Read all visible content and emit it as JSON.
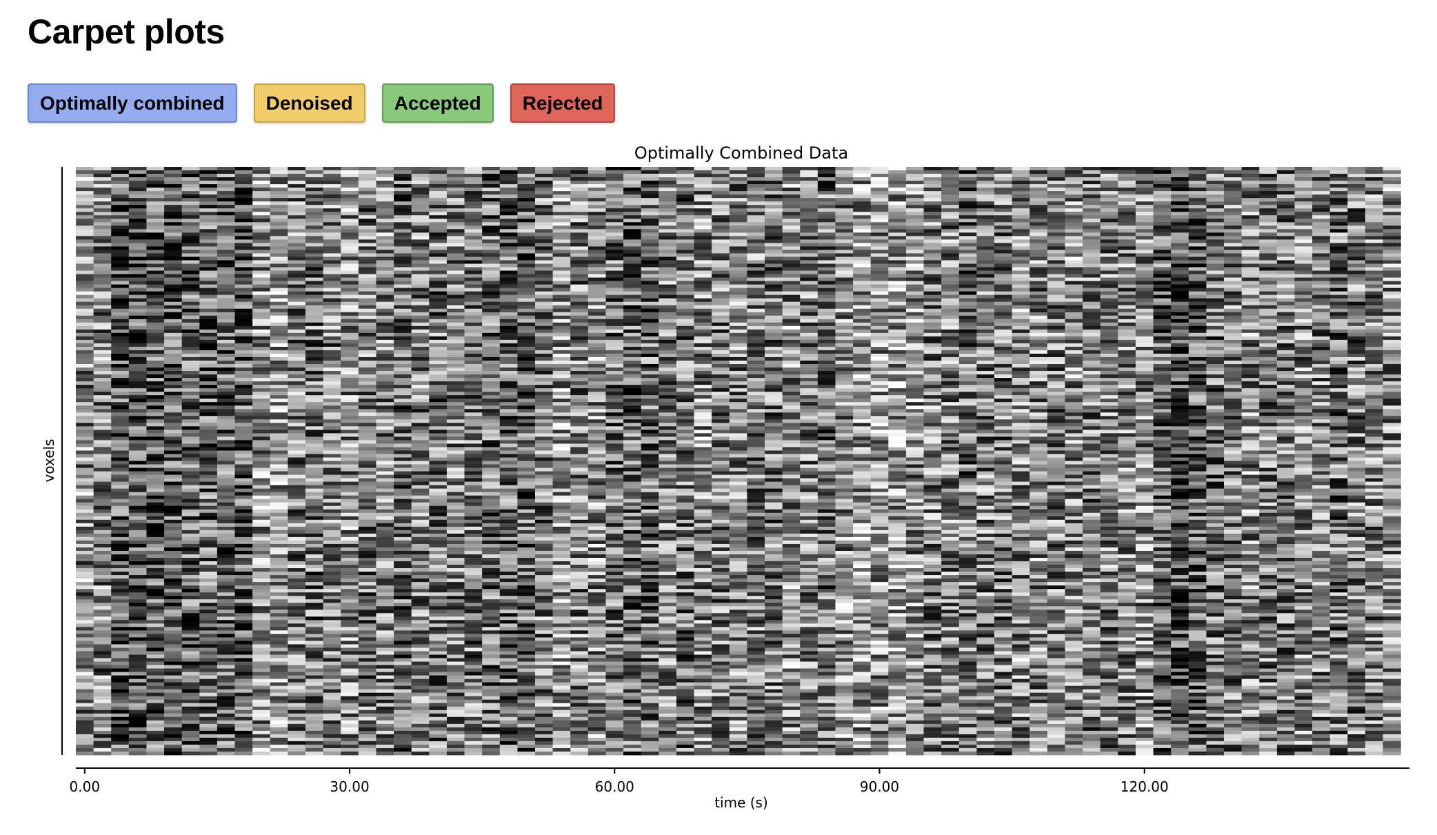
{
  "page": {
    "title": "Carpet plots"
  },
  "tabs": [
    {
      "label": "Optimally combined",
      "color": "#94abef",
      "border": "#6f86c9"
    },
    {
      "label": "Denoised",
      "color": "#f2cc6b",
      "border": "#c9a34a"
    },
    {
      "label": "Accepted",
      "color": "#88c97a",
      "border": "#5f9e54"
    },
    {
      "label": "Rejected",
      "color": "#e0665a",
      "border": "#b3463c"
    }
  ],
  "chart_data": {
    "type": "heatmap",
    "title": "Optimally Combined Data",
    "xlabel": "time (s)",
    "ylabel": "voxels",
    "xlim": [
      -1,
      150
    ],
    "x_ticks": [
      0,
      30,
      60,
      90,
      120
    ],
    "x_tick_labels": [
      "0.00",
      "30.00",
      "60.00",
      "90.00",
      "120.00"
    ],
    "colormap": "gray",
    "time_step_s": 2,
    "n_timepoints": 75,
    "column_mean_brightness": [
      0.55,
      0.5,
      0.35,
      0.3,
      0.4,
      0.35,
      0.4,
      0.42,
      0.38,
      0.35,
      0.58,
      0.62,
      0.5,
      0.45,
      0.5,
      0.55,
      0.48,
      0.52,
      0.42,
      0.5,
      0.45,
      0.5,
      0.48,
      0.45,
      0.4,
      0.42,
      0.48,
      0.6,
      0.5,
      0.55,
      0.45,
      0.4,
      0.42,
      0.5,
      0.45,
      0.55,
      0.48,
      0.52,
      0.5,
      0.48,
      0.55,
      0.5,
      0.45,
      0.55,
      0.6,
      0.58,
      0.62,
      0.55,
      0.5,
      0.52,
      0.45,
      0.5,
      0.48,
      0.55,
      0.52,
      0.5,
      0.55,
      0.48,
      0.5,
      0.52,
      0.55,
      0.38,
      0.3,
      0.35,
      0.45,
      0.5,
      0.55,
      0.5,
      0.48,
      0.52,
      0.5,
      0.45,
      0.48,
      0.5,
      0.55
    ],
    "grid": false,
    "legend": "none"
  }
}
